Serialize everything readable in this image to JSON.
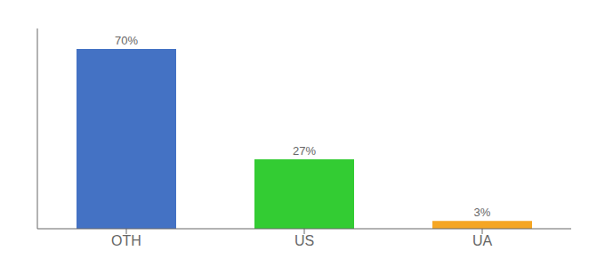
{
  "chart_data": {
    "type": "bar",
    "categories": [
      "OTH",
      "US",
      "UA"
    ],
    "values": [
      70,
      27,
      3
    ],
    "value_labels": [
      "70%",
      "27%",
      "3%"
    ],
    "colors": [
      "#4472c4",
      "#33cc33",
      "#f5a623"
    ],
    "ylim": [
      0,
      78
    ],
    "data_labels": true,
    "tick_labels": "x",
    "grid": false
  }
}
